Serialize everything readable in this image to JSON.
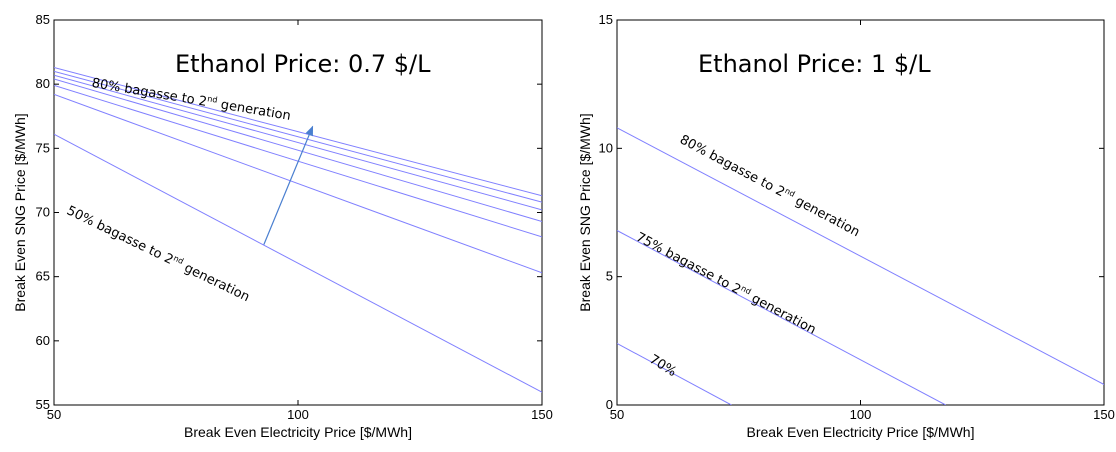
{
  "chart_data": [
    {
      "type": "line",
      "title": "Ethanol Price: 0.7 $/L",
      "xlabel": "Break Even Electricity Price [$/MWh]",
      "ylabel": "Break Even SNG Price [$/MWh]",
      "xlim": [
        50,
        150
      ],
      "ylim": [
        55,
        85
      ],
      "xticks": [
        "50",
        "100",
        "150"
      ],
      "yticks": [
        "55",
        "60",
        "65",
        "70",
        "75",
        "80",
        "85"
      ],
      "grid": false,
      "line_color": "#8080ff",
      "series": [
        {
          "x": [
            50,
            150
          ],
          "y": [
            76.1,
            56.0
          ]
        },
        {
          "x": [
            50,
            150
          ],
          "y": [
            79.2,
            65.3
          ]
        },
        {
          "x": [
            50,
            150
          ],
          "y": [
            79.9,
            68.1
          ]
        },
        {
          "x": [
            50,
            150
          ],
          "y": [
            80.4,
            69.3
          ]
        },
        {
          "x": [
            50,
            150
          ],
          "y": [
            80.7,
            70.2
          ]
        },
        {
          "x": [
            50,
            150
          ],
          "y": [
            81.0,
            70.8
          ]
        },
        {
          "x": [
            50,
            150
          ],
          "y": [
            81.3,
            71.3
          ]
        }
      ],
      "arrow": {
        "from": [
          93,
          67.5
        ],
        "to": [
          103,
          76.7
        ]
      },
      "annotations": [
        {
          "base": "80% bagasse to 2",
          "sup": "nd",
          "tail": " generation",
          "at": [
            78,
            78.5
          ],
          "angle_deg": 9.5
        },
        {
          "base": "50% bagasse to 2",
          "sup": "nd",
          "tail": " generation",
          "at": [
            71,
            66.5
          ],
          "angle_deg": 26
        }
      ]
    },
    {
      "type": "line",
      "title": "Ethanol Price: 1 $/L",
      "xlabel": "Break Even Electricity Price [$/MWh]",
      "ylabel": "Break Even SNG Price [$/MWh]",
      "xlim": [
        50,
        150
      ],
      "ylim": [
        0,
        15
      ],
      "xticks": [
        "50",
        "100",
        "150"
      ],
      "yticks": [
        "0",
        "5",
        "10",
        "15"
      ],
      "grid": false,
      "line_color": "#8080ff",
      "series": [
        {
          "x": [
            50,
            150
          ],
          "y": [
            10.8,
            0.8
          ]
        },
        {
          "x": [
            50,
            117.5
          ],
          "y": [
            6.8,
            0
          ]
        },
        {
          "x": [
            50,
            73.5
          ],
          "y": [
            2.4,
            0
          ]
        }
      ],
      "annotations": [
        {
          "base": "80% bagasse to 2",
          "sup": "nd",
          "tail": " generation",
          "at": [
            81,
            8.4
          ],
          "angle_deg": 28
        },
        {
          "base": "75% bagasse to 2",
          "sup": "nd",
          "tail": " generation",
          "at": [
            72,
            4.6
          ],
          "angle_deg": 28
        },
        {
          "base": "70%",
          "sup": "",
          "tail": "",
          "at": [
            59,
            1.4
          ],
          "angle_deg": 32
        }
      ]
    }
  ]
}
